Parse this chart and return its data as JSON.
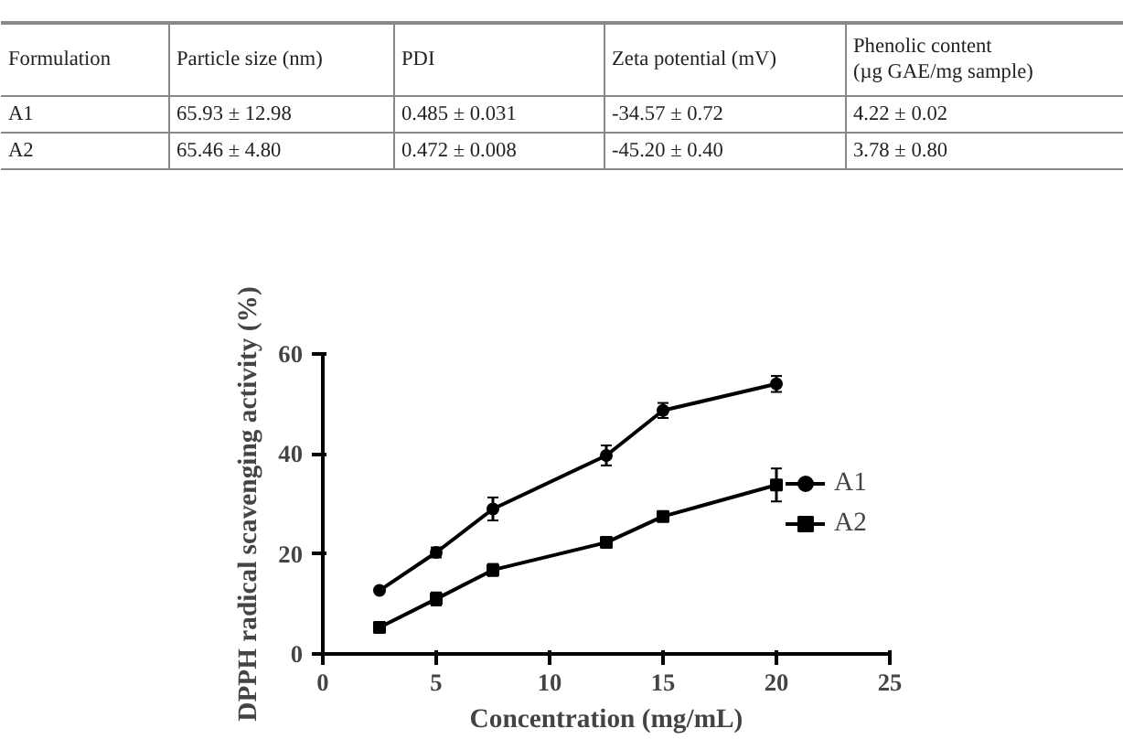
{
  "chart_data": [
    {
      "type": "other",
      "categories": [
        "Formulation",
        "Particle size (nm)",
        "PDI",
        "Zeta potential (mV)",
        "Phenolic content\n(µg GAE/mg sample)"
      ],
      "annotations": [
        "A1",
        "65.93 ± 12.98",
        "0.485 ± 0.031",
        "-34.57 ± 0.72",
        "4.22 ± 0.02",
        "A2",
        "65.46 ± 4.80",
        "0.472 ± 0.008",
        "-45.20 ± 0.40",
        "3.78 ± 0.80"
      ]
    },
    {
      "type": "line",
      "xlabel": "Concentration (mg/mL)",
      "ylabel": "DPPH radical scavenging activity (%)",
      "xlim": [
        0,
        25
      ],
      "xticks": [
        0,
        5,
        10,
        15,
        20,
        25
      ],
      "ylim": [
        0,
        60
      ],
      "yticks": [
        0,
        20,
        40,
        60
      ],
      "grid": false,
      "legend": "right",
      "series": [
        {
          "name": "A1",
          "color": "#000000",
          "marker": "circle",
          "x": [
            2.5,
            5,
            7.5,
            12.5,
            15,
            20
          ],
          "values": [
            12.7,
            20.3,
            29.0,
            39.7,
            48.7,
            54.0
          ],
          "errors": [
            null,
            1.0,
            2.3,
            2.0,
            1.5,
            1.6
          ]
        },
        {
          "name": "A2",
          "color": "#000000",
          "marker": "square",
          "x": [
            2.5,
            5,
            7.5,
            12.5,
            15,
            20
          ],
          "values": [
            5.3,
            11.0,
            16.8,
            22.3,
            27.5,
            33.8
          ],
          "errors": [
            1.0,
            1.3,
            1.2,
            0.5,
            0.7,
            3.3
          ]
        }
      ]
    }
  ]
}
